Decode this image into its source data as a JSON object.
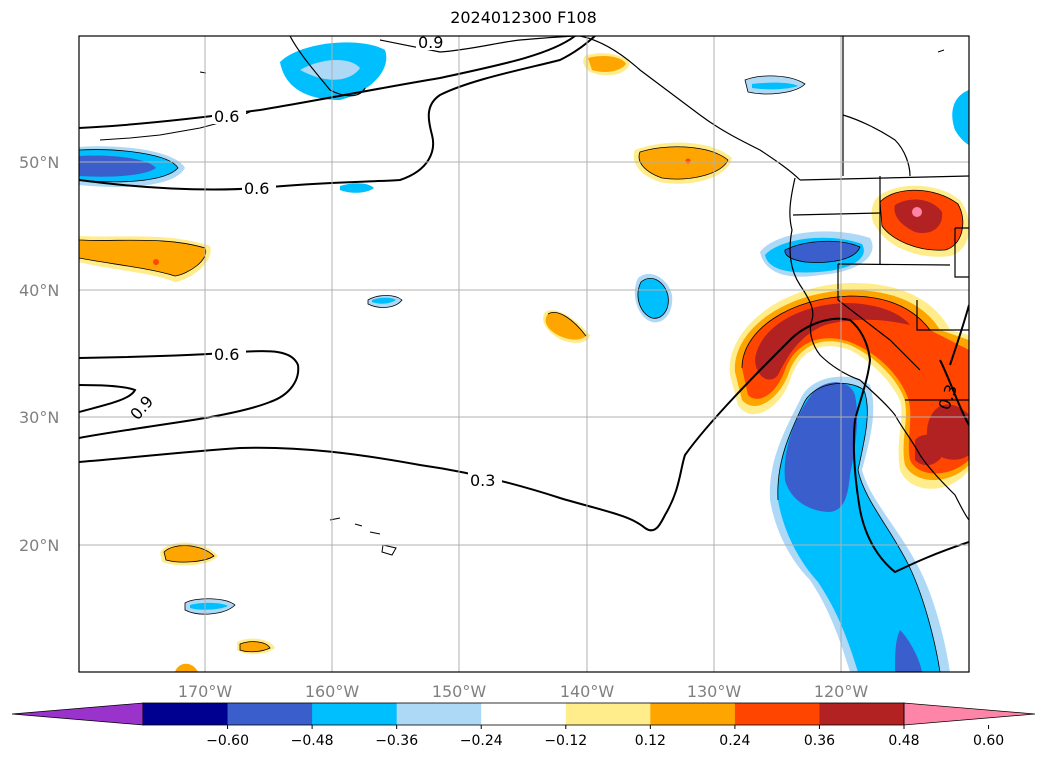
{
  "title": "2024012300 F108",
  "map": {
    "lat_ticks": [
      "20°N",
      "30°N",
      "40°N",
      "50°N"
    ],
    "lon_ticks": [
      "170°W",
      "160°W",
      "150°W",
      "140°W",
      "130°W",
      "120°W"
    ],
    "contour_labels": [
      "0.6",
      "0.6",
      "0.6",
      "0.9",
      "0.9",
      "0.3",
      "0.3"
    ],
    "grid": true
  },
  "colorbar": {
    "ticks": [
      "−0.60",
      "−0.48",
      "−0.36",
      "−0.24",
      "−0.12",
      "0.12",
      "0.24",
      "0.36",
      "0.48",
      "0.60"
    ],
    "colors": [
      "#9933cc",
      "#000090",
      "#3a5fcd",
      "#00bfff",
      "#add8f6",
      "#ffffff",
      "#ffec8b",
      "#ffa500",
      "#ff4500",
      "#b22222",
      "#ff85a8"
    ]
  }
}
